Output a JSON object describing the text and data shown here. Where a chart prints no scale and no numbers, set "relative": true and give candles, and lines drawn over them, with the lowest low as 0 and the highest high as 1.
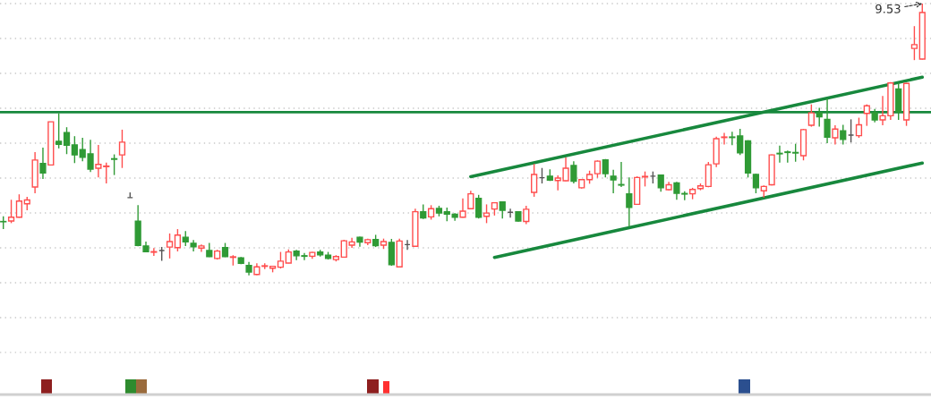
{
  "chart_data": {
    "type": "candlestick",
    "relative": true,
    "categories": [
      null,
      null,
      null,
      null,
      null,
      null,
      null,
      null,
      null,
      null,
      null,
      null,
      null,
      null,
      null,
      null,
      null,
      null,
      null,
      null,
      null,
      null,
      null,
      null,
      null,
      null,
      null,
      null,
      null,
      null,
      null,
      null,
      null,
      null,
      null,
      null,
      null,
      null,
      null,
      null,
      null,
      null,
      null,
      null,
      null,
      null,
      null,
      null,
      null,
      null,
      null,
      null,
      null,
      null,
      null,
      null,
      null,
      null,
      null,
      null,
      null,
      null,
      null,
      null,
      null,
      null,
      null,
      null,
      null,
      null,
      null,
      null,
      null,
      null,
      null,
      null,
      null,
      null,
      null,
      null,
      null,
      null,
      null,
      null,
      null,
      null,
      null,
      null,
      null,
      null,
      null,
      null,
      null,
      null,
      null,
      null,
      null,
      null,
      null,
      null,
      null,
      null,
      null,
      null,
      null,
      null,
      null,
      null,
      null,
      null,
      null,
      null,
      null,
      null,
      null,
      null,
      null
    ],
    "ohlc": [
      [
        0.198,
        0.217,
        0.17,
        0.197
      ],
      [
        0.2,
        0.278,
        0.192,
        0.214
      ],
      [
        0.214,
        0.298,
        0.212,
        0.273
      ],
      [
        0.263,
        0.289,
        0.239,
        0.277
      ],
      [
        0.325,
        0.453,
        0.302,
        0.424
      ],
      [
        0.412,
        0.47,
        0.355,
        0.377
      ],
      [
        0.406,
        0.565,
        0.406,
        0.565
      ],
      [
        0.493,
        0.596,
        0.467,
        0.482
      ],
      [
        0.525,
        0.545,
        0.446,
        0.479
      ],
      [
        0.48,
        0.512,
        0.413,
        0.443
      ],
      [
        0.463,
        0.506,
        0.42,
        0.434
      ],
      [
        0.447,
        0.499,
        0.38,
        0.391
      ],
      [
        0.394,
        0.48,
        0.36,
        0.408
      ],
      [
        0.4,
        0.415,
        0.338,
        0.402
      ],
      [
        0.429,
        0.445,
        0.369,
        0.427
      ],
      [
        0.443,
        0.536,
        0.395,
        0.49
      ],
      [
        0.286,
        0.305,
        0.286,
        0.286
      ],
      [
        0.199,
        0.258,
        0.107,
        0.11
      ],
      [
        0.108,
        0.124,
        0.085,
        0.087
      ],
      [
        0.085,
        0.1,
        0.071,
        0.087
      ],
      [
        0.091,
        0.104,
        0.053,
        0.091
      ],
      [
        0.104,
        0.154,
        0.062,
        0.124
      ],
      [
        0.102,
        0.17,
        0.088,
        0.148
      ],
      [
        0.14,
        0.163,
        0.108,
        0.123
      ],
      [
        0.118,
        0.13,
        0.088,
        0.105
      ],
      [
        0.1,
        0.113,
        0.086,
        0.108
      ],
      [
        0.091,
        0.119,
        0.067,
        0.069
      ],
      [
        0.062,
        0.094,
        0.058,
        0.089
      ],
      [
        0.102,
        0.119,
        0.067,
        0.069
      ],
      [
        0.066,
        0.074,
        0.036,
        0.068
      ],
      [
        0.064,
        0.067,
        0.041,
        0.044
      ],
      [
        0.036,
        0.049,
        0,
        0.012
      ],
      [
        0.003,
        0.044,
        0.001,
        0.031
      ],
      [
        0.033,
        0.044,
        0.023,
        0.035
      ],
      [
        0.026,
        0.034,
        0.011,
        0.033
      ],
      [
        0.03,
        0.086,
        0.025,
        0.052
      ],
      [
        0.045,
        0.095,
        0.044,
        0.086
      ],
      [
        0.089,
        0.094,
        0.056,
        0.072
      ],
      [
        0.072,
        0.082,
        0.056,
        0.07
      ],
      [
        0.07,
        0.086,
        0.061,
        0.084
      ],
      [
        0.086,
        0.094,
        0.069,
        0.075
      ],
      [
        0.074,
        0.086,
        0.058,
        0.062
      ],
      [
        0.058,
        0.074,
        0.051,
        0.069
      ],
      [
        0.067,
        0.131,
        0.065,
        0.127
      ],
      [
        0.111,
        0.138,
        0.101,
        0.123
      ],
      [
        0.14,
        0.142,
        0.105,
        0.122
      ],
      [
        0.12,
        0.135,
        0.111,
        0.131
      ],
      [
        0.132,
        0.149,
        0.104,
        0.109
      ],
      [
        0.111,
        0.135,
        0.097,
        0.124
      ],
      [
        0.121,
        0.134,
        0.035,
        0.039
      ],
      [
        0.031,
        0.135,
        0.03,
        0.126
      ],
      [
        0.113,
        0.13,
        0.094,
        0.113
      ],
      [
        0.107,
        0.245,
        0.104,
        0.234
      ],
      [
        0.234,
        0.261,
        0.207,
        0.211
      ],
      [
        0.215,
        0.258,
        0.205,
        0.245
      ],
      [
        0.246,
        0.256,
        0.217,
        0.229
      ],
      [
        0.234,
        0.249,
        0.199,
        0.225
      ],
      [
        0.225,
        0.229,
        0.201,
        0.214
      ],
      [
        0.214,
        0.283,
        0.212,
        0.236
      ],
      [
        0.245,
        0.311,
        0.243,
        0.3
      ],
      [
        0.283,
        0.296,
        0.209,
        0.214
      ],
      [
        0.217,
        0.261,
        0.192,
        0.229
      ],
      [
        0.244,
        0.269,
        0.22,
        0.267
      ],
      [
        0.27,
        0.272,
        0.209,
        0.239
      ],
      [
        0.232,
        0.245,
        0.212,
        0.232
      ],
      [
        0.234,
        0.236,
        0.197,
        0.2
      ],
      [
        0.198,
        0.256,
        0.188,
        0.243
      ],
      [
        0.305,
        0.41,
        0.289,
        0.371
      ],
      [
        0.359,
        0.395,
        0.338,
        0.359
      ],
      [
        0.365,
        0.39,
        0.347,
        0.35
      ],
      [
        0.349,
        0.368,
        0.313,
        0.358
      ],
      [
        0.348,
        0.434,
        0.346,
        0.394
      ],
      [
        0.404,
        0.42,
        0.338,
        0.346
      ],
      [
        0.322,
        0.355,
        0.319,
        0.352
      ],
      [
        0.352,
        0.385,
        0.337,
        0.371
      ],
      [
        0.374,
        0.423,
        0.359,
        0.42
      ],
      [
        0.425,
        0.428,
        0.36,
        0.374
      ],
      [
        0.365,
        0.388,
        0.302,
        0.351
      ],
      [
        0.334,
        0.417,
        0.325,
        0.332
      ],
      [
        0.3,
        0.36,
        0.179,
        0.25
      ],
      [
        0.261,
        0.364,
        0.259,
        0.36
      ],
      [
        0.362,
        0.382,
        0.327,
        0.364
      ],
      [
        0.365,
        0.382,
        0.338,
        0.365
      ],
      [
        0.369,
        0.371,
        0.308,
        0.322
      ],
      [
        0.315,
        0.344,
        0.313,
        0.333
      ],
      [
        0.34,
        0.344,
        0.278,
        0.302
      ],
      [
        0.301,
        0.309,
        0.276,
        0.299
      ],
      [
        0.3,
        0.322,
        0.28,
        0.316
      ],
      [
        0.319,
        0.338,
        0.313,
        0.329
      ],
      [
        0.327,
        0.417,
        0.324,
        0.407
      ],
      [
        0.41,
        0.51,
        0.398,
        0.503
      ],
      [
        0.507,
        0.524,
        0.481,
        0.509
      ],
      [
        0.509,
        0.528,
        0.479,
        0.507
      ],
      [
        0.513,
        0.539,
        0.443,
        0.451
      ],
      [
        0.495,
        0.497,
        0.36,
        0.377
      ],
      [
        0.371,
        0.374,
        0.302,
        0.322
      ],
      [
        0.311,
        0.331,
        0.286,
        0.327
      ],
      [
        0.333,
        0.445,
        0.331,
        0.443
      ],
      [
        0.449,
        0.477,
        0.415,
        0.447
      ],
      [
        0.454,
        0.459,
        0.415,
        0.452
      ],
      [
        0.452,
        0.484,
        0.418,
        0.45
      ],
      [
        0.44,
        0.539,
        0.423,
        0.536
      ],
      [
        0.552,
        0.629,
        0.547,
        0.598
      ],
      [
        0.598,
        0.616,
        0.547,
        0.583
      ],
      [
        0.574,
        0.651,
        0.486,
        0.508
      ],
      [
        0.506,
        0.552,
        0.481,
        0.538
      ],
      [
        0.532,
        0.554,
        0.481,
        0.5
      ],
      [
        0.516,
        0.574,
        0.489,
        0.516
      ],
      [
        0.514,
        0.58,
        0.506,
        0.554
      ],
      [
        0.596,
        0.629,
        0.55,
        0.624
      ],
      [
        0.598,
        0.612,
        0.563,
        0.572
      ],
      [
        0.572,
        0.66,
        0.552,
        0.587
      ],
      [
        0.587,
        0.711,
        0.572,
        0.708
      ],
      [
        0.686,
        0.708,
        0.572,
        0.602
      ],
      [
        0.572,
        0.708,
        0.55,
        0.706
      ],
      [
        0.835,
        0.917,
        0.792,
        0.849
      ],
      [
        0.796,
        1,
        0.794,
        0.967
      ]
    ],
    "colors": [
      "#2f9a35",
      "#ff4d4d",
      "#ff4d4d",
      "#ff4d4d",
      "#ff4d4d",
      "#2f9a35",
      "#ff4d4d",
      "#2f9a35",
      "#2f9a35",
      "#2f9a35",
      "#2f9a35",
      "#2f9a35",
      "#ff4d4d",
      "#ff4d4d",
      "#2f9a35",
      "#ff4d4d",
      "#555555",
      "#2f9a35",
      "#2f9a35",
      "#ff4d4d",
      "#555555",
      "#ff4d4d",
      "#ff4d4d",
      "#2f9a35",
      "#2f9a35",
      "#ff4d4d",
      "#2f9a35",
      "#ff4d4d",
      "#2f9a35",
      "#ff4d4d",
      "#2f9a35",
      "#2f9a35",
      "#ff4d4d",
      "#ff4d4d",
      "#ff4d4d",
      "#ff4d4d",
      "#ff4d4d",
      "#2f9a35",
      "#2f9a35",
      "#ff4d4d",
      "#2f9a35",
      "#2f9a35",
      "#ff4d4d",
      "#ff4d4d",
      "#ff4d4d",
      "#2f9a35",
      "#ff4d4d",
      "#2f9a35",
      "#ff4d4d",
      "#2f9a35",
      "#ff4d4d",
      "#555555",
      "#ff4d4d",
      "#2f9a35",
      "#ff4d4d",
      "#2f9a35",
      "#2f9a35",
      "#2f9a35",
      "#ff4d4d",
      "#ff4d4d",
      "#2f9a35",
      "#ff4d4d",
      "#ff4d4d",
      "#2f9a35",
      "#555555",
      "#2f9a35",
      "#ff4d4d",
      "#ff4d4d",
      "#555555",
      "#2f9a35",
      "#ff4d4d",
      "#ff4d4d",
      "#2f9a35",
      "#ff4d4d",
      "#ff4d4d",
      "#ff4d4d",
      "#2f9a35",
      "#2f9a35",
      "#2f9a35",
      "#2f9a35",
      "#ff4d4d",
      "#ff4d4d",
      "#555555",
      "#2f9a35",
      "#ff4d4d",
      "#2f9a35",
      "#2f9a35",
      "#ff4d4d",
      "#ff4d4d",
      "#ff4d4d",
      "#ff4d4d",
      "#ff4d4d",
      "#2f9a35",
      "#2f9a35",
      "#2f9a35",
      "#2f9a35",
      "#ff4d4d",
      "#ff4d4d",
      "#2f9a35",
      "#2f9a35",
      "#2f9a35",
      "#ff4d4d",
      "#ff4d4d",
      "#2f9a35",
      "#2f9a35",
      "#ff4d4d",
      "#2f9a35",
      "#555555",
      "#ff4d4d",
      "#ff4d4d",
      "#2f9a35",
      "#ff4d4d",
      "#ff4d4d",
      "#2f9a35",
      "#ff4d4d",
      "#ff4d4d",
      "#ff4d4d"
    ],
    "series": [
      {
        "type": "line",
        "color": "#17883d",
        "values": [
          null,
          null,
          null,
          null,
          null,
          null,
          null,
          null,
          null,
          null,
          null,
          null,
          null,
          null,
          null,
          null,
          null,
          null,
          null,
          null,
          null,
          null,
          null,
          null,
          null,
          null,
          null,
          null,
          null,
          null,
          null,
          null,
          null,
          null,
          null,
          null,
          null,
          null,
          null,
          null,
          null,
          null,
          null,
          null,
          null,
          null,
          null,
          null,
          null,
          null,
          null,
          null,
          null,
          null,
          null,
          null,
          null,
          null,
          null,
          0.363,
          null,
          null,
          null,
          null,
          null,
          null,
          null,
          null,
          null,
          null,
          null,
          null,
          null,
          null,
          null,
          null,
          null,
          null,
          null,
          null,
          null,
          null,
          null,
          null,
          null,
          null,
          null,
          null,
          null,
          null,
          null,
          null,
          null,
          null,
          null,
          null,
          null,
          null,
          null,
          null,
          null,
          null,
          null,
          null,
          null,
          null,
          null,
          null,
          null,
          null,
          null,
          null,
          null,
          null,
          null,
          null,
          0.729
        ]
      },
      {
        "type": "line",
        "color": "#17883d",
        "values": [
          null,
          null,
          null,
          null,
          null,
          null,
          null,
          null,
          null,
          null,
          null,
          null,
          null,
          null,
          null,
          null,
          null,
          null,
          null,
          null,
          null,
          null,
          null,
          null,
          null,
          null,
          null,
          null,
          null,
          null,
          null,
          null,
          null,
          null,
          null,
          null,
          null,
          null,
          null,
          null,
          null,
          null,
          null,
          null,
          null,
          null,
          null,
          null,
          null,
          null,
          null,
          null,
          null,
          null,
          null,
          null,
          null,
          null,
          null,
          null,
          null,
          null,
          0.066,
          null,
          null,
          null,
          null,
          null,
          null,
          null,
          null,
          null,
          null,
          null,
          null,
          null,
          null,
          null,
          null,
          null,
          null,
          null,
          null,
          null,
          null,
          null,
          null,
          null,
          null,
          null,
          null,
          null,
          null,
          null,
          null,
          null,
          null,
          null,
          null,
          null,
          null,
          null,
          null,
          null,
          null,
          null,
          null,
          null,
          null,
          null,
          null,
          null,
          null,
          null,
          null,
          null,
          0.413
        ]
      }
    ],
    "ref_lines": [
      {
        "axis": "y",
        "value": 0.6,
        "color": "#17883d"
      }
    ],
    "annotations": [
      "9.53"
    ],
    "grid": "y",
    "tick_labels": false
  }
}
